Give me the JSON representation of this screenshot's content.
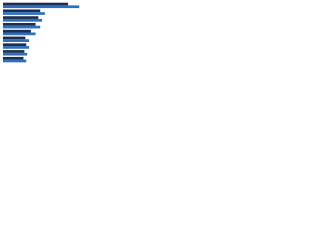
{
  "chart_data": {
    "type": "hbar",
    "categories": [
      null,
      null,
      null,
      null,
      null,
      null,
      null,
      null,
      null
    ],
    "series": [
      {
        "color": "#1c2d4f",
        "values": [
          70,
          40,
          38,
          35,
          30,
          24,
          25,
          23,
          22
        ]
      },
      {
        "color": "#2e6fbd",
        "values": [
          82,
          45,
          42,
          40,
          35,
          28,
          28,
          26,
          25
        ]
      }
    ],
    "xlim": [
      0,
      100
    ]
  }
}
